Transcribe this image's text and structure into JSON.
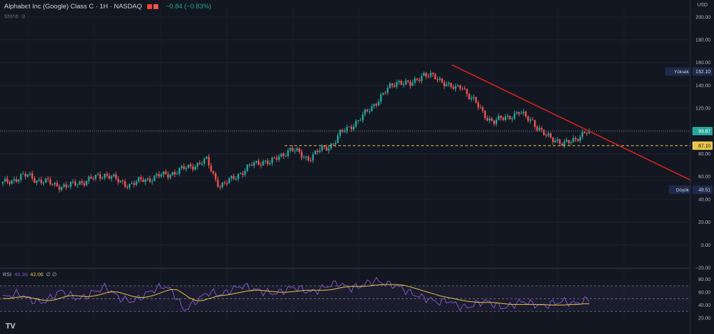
{
  "header": {
    "title": "Alphabet Inc (Google) Class C · 1H · NASDAQ",
    "change": "−0.84 (−0.83%)",
    "indicator": "SMA6"
  },
  "price_scale": {
    "currency": "USD",
    "ticks": [
      "200.00",
      "180.00",
      "160.00",
      "140.00",
      "120.00",
      "100.00",
      "80.00",
      "60.00",
      "40.00",
      "20.00",
      "0.00",
      "−20.00"
    ],
    "high_label": "Yüksek",
    "high_value": "152.10",
    "low_label": "Düşük",
    "low_value": "48.51",
    "last_value": "99.87",
    "support_value": "87.10"
  },
  "rsi": {
    "label": "RSI",
    "value": "49.36",
    "ma_value": "42.06",
    "extra": "∅ ∅",
    "ticks": [
      "80.00",
      "60.00",
      "40.00",
      "20.00"
    ]
  },
  "logo": "TV",
  "colors": {
    "up": "#26a69a",
    "down": "#ef5350",
    "trendline": "#d8211b",
    "support": "#e8c547",
    "rsi": "#7e57c2",
    "rsi_ma": "#e8c547"
  },
  "chart_data": {
    "type": "candlestick",
    "ylim": [
      -20,
      210
    ],
    "high": 152.1,
    "low": 48.51,
    "last": 99.87,
    "support_level": 87.1,
    "trendline": {
      "from": 158,
      "to": 57
    },
    "close_path": [
      54,
      56,
      58,
      60,
      61,
      58,
      56,
      55,
      53,
      52,
      51,
      53,
      55,
      56,
      58,
      60,
      62,
      60,
      56,
      54,
      53,
      55,
      57,
      58,
      60,
      61,
      62,
      64,
      66,
      68,
      70,
      72,
      74,
      62,
      52,
      54,
      58,
      62,
      66,
      70,
      72,
      74,
      72,
      76,
      80,
      84,
      82,
      78,
      76,
      80,
      84,
      86,
      90,
      98,
      102,
      106,
      110,
      116,
      122,
      128,
      134,
      140,
      144,
      142,
      140,
      146,
      150,
      148,
      146,
      144,
      140,
      136,
      140,
      132,
      126,
      118,
      112,
      108,
      110,
      112,
      114,
      116,
      112,
      110,
      102,
      96,
      94,
      92,
      88,
      90,
      94,
      98,
      99.87
    ],
    "rsi_ylim": [
      20,
      85
    ],
    "rsi_path": [
      52,
      54,
      58,
      56,
      50,
      46,
      44,
      48,
      56,
      62,
      58,
      52,
      50,
      54,
      60,
      64,
      68,
      60,
      52,
      48,
      46,
      50,
      56,
      62,
      66,
      70,
      64,
      52,
      32,
      38,
      46,
      54,
      60,
      58,
      56,
      62,
      66,
      70,
      68,
      64,
      62,
      60,
      58,
      60,
      64,
      68,
      66,
      62,
      60,
      64,
      68,
      72,
      74,
      70,
      66,
      68,
      72,
      76,
      78,
      74,
      72,
      70,
      66,
      60,
      56,
      52,
      50,
      46,
      44,
      48,
      42,
      38,
      36,
      40,
      44,
      46,
      42,
      38,
      36,
      40,
      44,
      46,
      42,
      40,
      38,
      42,
      44,
      46,
      44,
      42,
      46,
      49.36
    ],
    "rsi_ma_path": [
      50,
      50,
      52,
      53,
      52,
      50,
      48,
      47,
      48,
      51,
      54,
      55,
      54,
      53,
      54,
      56,
      59,
      61,
      60,
      57,
      54,
      52,
      52,
      54,
      57,
      61,
      64,
      64,
      58,
      51,
      47,
      47,
      50,
      53,
      55,
      56,
      58,
      60,
      62,
      63,
      63,
      62,
      61,
      60,
      60,
      61,
      62,
      63,
      63,
      63,
      63,
      64,
      66,
      68,
      69,
      69,
      69,
      70,
      71,
      72,
      72,
      72,
      71,
      69,
      66,
      63,
      60,
      57,
      54,
      52,
      50,
      48,
      46,
      45,
      44,
      44,
      44,
      43,
      42,
      41,
      41,
      41,
      41,
      41,
      41,
      40,
      40,
      40,
      41,
      41,
      42,
      42.06
    ]
  }
}
